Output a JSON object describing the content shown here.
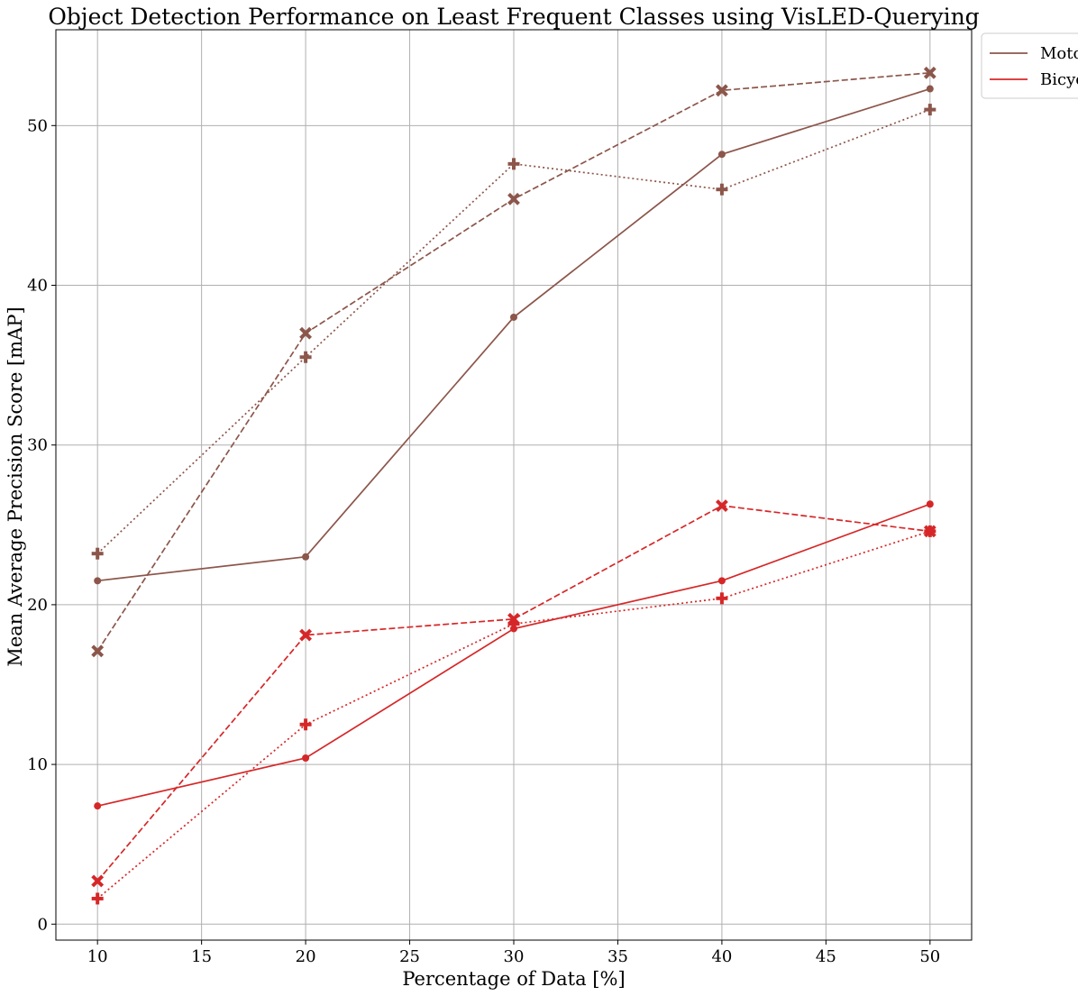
{
  "chart_data": {
    "type": "line",
    "title": "Object Detection Performance on Least Frequent Classes using VisLED-Querying",
    "xlabel": "Percentage of Data [%]",
    "ylabel": "Mean Average Precision Score [mAP]",
    "xlim": [
      8,
      52
    ],
    "ylim": [
      -1,
      56
    ],
    "xticks": [
      10,
      15,
      20,
      25,
      30,
      35,
      40,
      45,
      50
    ],
    "yticks": [
      0,
      10,
      20,
      30,
      40,
      50
    ],
    "grid": true,
    "legend_position": "outside-top-right",
    "legend_entries": [
      {
        "label": "Moto",
        "color": "#8c564b"
      },
      {
        "label": "Bicyc",
        "color": "#d62728"
      }
    ],
    "x": [
      10,
      20,
      30,
      40,
      50
    ],
    "series": [
      {
        "color": "#8c564b",
        "line_style": "solid",
        "marker": "circle",
        "values": [
          21.5,
          23.0,
          38.0,
          48.2,
          52.3
        ]
      },
      {
        "color": "#8c564b",
        "line_style": "dashed",
        "marker": "x",
        "values": [
          17.1,
          37.0,
          45.4,
          52.2,
          53.3
        ]
      },
      {
        "color": "#8c564b",
        "line_style": "dotted",
        "marker": "plus",
        "values": [
          23.2,
          35.5,
          47.6,
          46.0,
          51.0
        ]
      },
      {
        "color": "#d62728",
        "line_style": "solid",
        "marker": "circle",
        "values": [
          7.4,
          10.4,
          18.5,
          21.5,
          26.3
        ]
      },
      {
        "color": "#d62728",
        "line_style": "dashed",
        "marker": "x",
        "values": [
          2.7,
          18.1,
          19.1,
          26.2,
          24.6
        ]
      },
      {
        "color": "#d62728",
        "line_style": "dotted",
        "marker": "plus",
        "values": [
          1.6,
          12.5,
          18.8,
          20.4,
          24.6
        ]
      }
    ]
  }
}
